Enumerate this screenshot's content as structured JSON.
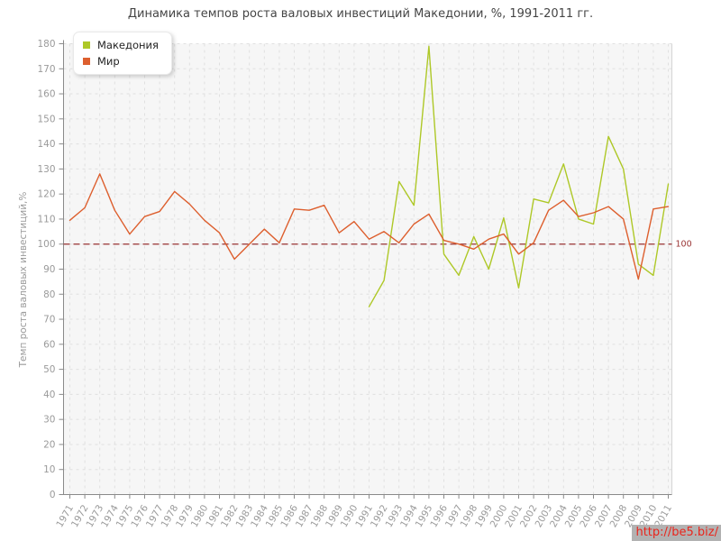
{
  "title": "Динамика темпов роста валовых инвестиций Македонии, %, 1991-2011 гг.",
  "watermark": "http://be5.biz/",
  "legend": {
    "items": [
      {
        "label": "Македония",
        "color": "#aec827"
      },
      {
        "label": "Мир",
        "color": "#dd5f2e"
      }
    ]
  },
  "chart_data": {
    "type": "line",
    "title": "Динамика темпов роста валовых инвестиций Македонии, %, 1991-2011 гг.",
    "xlabel": "",
    "ylabel": "Темп роста валовых инвестиций,%",
    "ylim": [
      0,
      180
    ],
    "ytick_step": 10,
    "grid": true,
    "legend_position": "top-left",
    "reference_line": {
      "value": 100,
      "label": "100",
      "color": "#993333"
    },
    "x": [
      1971,
      1972,
      1973,
      1974,
      1975,
      1976,
      1977,
      1978,
      1979,
      1980,
      1981,
      1982,
      1983,
      1984,
      1985,
      1986,
      1987,
      1988,
      1989,
      1990,
      1991,
      1992,
      1993,
      1994,
      1995,
      1996,
      1997,
      1998,
      1999,
      2000,
      2001,
      2002,
      2003,
      2004,
      2005,
      2006,
      2007,
      2008,
      2009,
      2010,
      2011
    ],
    "series": [
      {
        "name": "Македония",
        "color": "#aec827",
        "values": [
          null,
          null,
          null,
          null,
          null,
          null,
          null,
          null,
          null,
          null,
          null,
          null,
          null,
          null,
          null,
          null,
          null,
          null,
          null,
          null,
          75,
          85.5,
          125,
          115.5,
          179,
          96,
          87.5,
          103,
          90,
          110.5,
          82.5,
          118,
          116.5,
          132,
          110,
          108,
          143,
          130,
          92,
          87.5,
          124
        ]
      },
      {
        "name": "Мир",
        "color": "#dd5f2e",
        "values": [
          109.5,
          114.5,
          128,
          113.5,
          104,
          111,
          113,
          121,
          116,
          109.5,
          104.5,
          94,
          100,
          106,
          100.5,
          114,
          113.5,
          115.5,
          104.5,
          109,
          102,
          105,
          100.5,
          108,
          112,
          101.5,
          100,
          98,
          102,
          104,
          96,
          100.5,
          113.5,
          117.5,
          111,
          112.5,
          115,
          110,
          86,
          114,
          115
        ]
      }
    ]
  }
}
